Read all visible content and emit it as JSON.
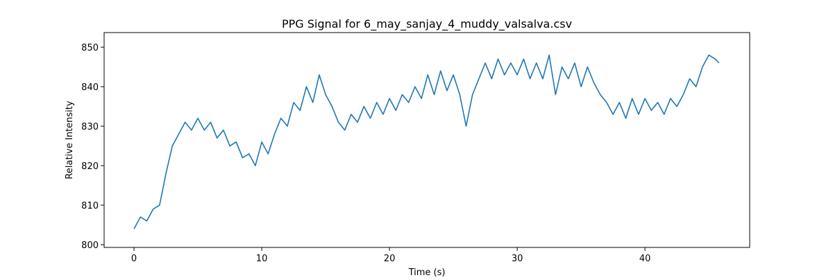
{
  "chart_data": {
    "type": "line",
    "title": "PPG Signal for 6_may_sanjay_4_muddy_valsalva.csv",
    "x_label": "Time (s)",
    "y_label": "Relative Intensity",
    "x": [
      0,
      0.5,
      1,
      1.5,
      2,
      2.5,
      3,
      3.5,
      4,
      4.5,
      5,
      5.5,
      6,
      6.5,
      7,
      7.5,
      8,
      8.5,
      9,
      9.5,
      10,
      10.5,
      11,
      11.5,
      12,
      12.5,
      13,
      13.5,
      14,
      14.5,
      15,
      15.5,
      16,
      16.5,
      17,
      17.5,
      18,
      18.5,
      19,
      19.5,
      20,
      20.5,
      21,
      21.5,
      22,
      22.5,
      23,
      23.5,
      24,
      24.5,
      25,
      25.5,
      26,
      26.5,
      27,
      27.5,
      28,
      28.5,
      29,
      29.5,
      30,
      30.5,
      31,
      31.5,
      32,
      32.5,
      33,
      33.5,
      34,
      34.5,
      35,
      35.5,
      36,
      36.5,
      37,
      37.5,
      38,
      38.5,
      39,
      39.5,
      40,
      40.5,
      41,
      41.5,
      42,
      42.5,
      43,
      43.5,
      44,
      44.5,
      45,
      45.5,
      45.8
    ],
    "series": [
      {
        "name": "PPG",
        "color": "#1f77b4",
        "values": [
          804,
          807,
          806,
          809,
          810,
          818,
          825,
          828,
          831,
          829,
          832,
          829,
          831,
          827,
          829,
          825,
          826,
          822,
          823,
          820,
          826,
          823,
          828,
          832,
          830,
          836,
          834,
          840,
          836,
          843,
          838,
          835,
          831,
          829,
          833,
          831,
          835,
          832,
          836,
          833,
          837,
          834,
          838,
          836,
          840,
          837,
          843,
          838,
          844,
          839,
          843,
          838,
          830,
          838,
          842,
          846,
          842,
          847,
          843,
          846,
          843,
          847,
          842,
          846,
          842,
          848,
          838,
          845,
          842,
          846,
          840,
          845,
          841,
          838,
          836,
          833,
          836,
          832,
          837,
          833,
          837,
          834,
          836,
          833,
          837,
          835,
          838,
          842,
          840,
          845,
          848,
          847,
          846
        ]
      }
    ],
    "xlim": [
      -2.34,
      48.2
    ],
    "ylim": [
      799.3,
      853.7
    ],
    "xticks": [
      0,
      10,
      20,
      30,
      40
    ],
    "yticks": [
      800,
      810,
      820,
      830,
      840,
      850
    ]
  }
}
